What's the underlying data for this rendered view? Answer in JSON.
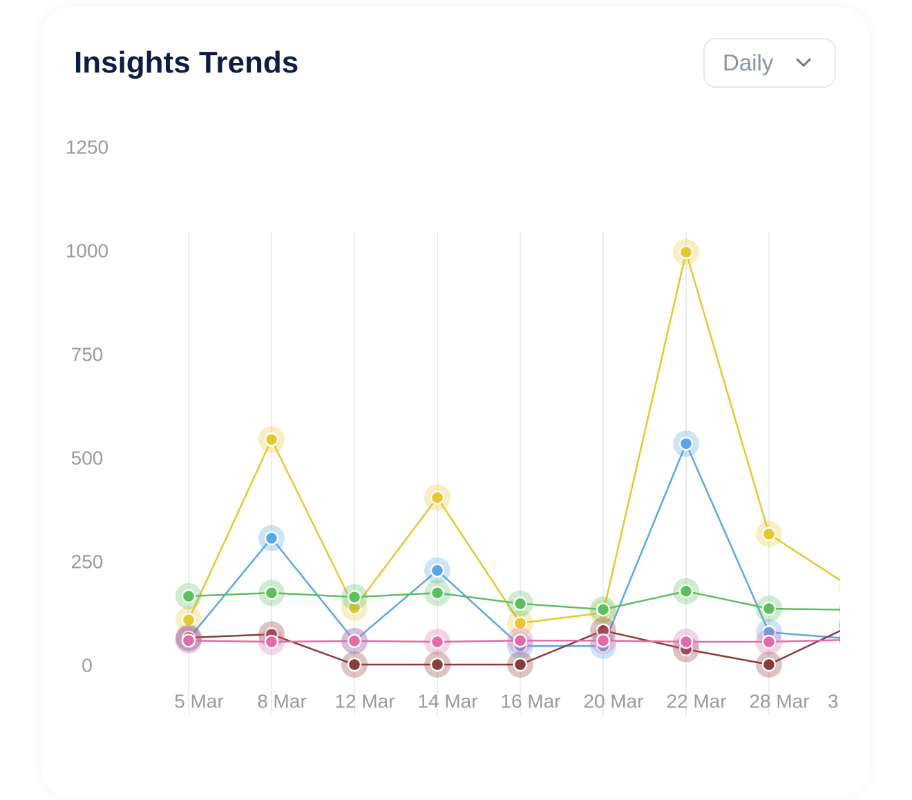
{
  "period_selector": "Daily",
  "chart_data": {
    "type": "line",
    "title": "Insights Trends",
    "categories": [
      "5 Mar",
      "8 Mar",
      "12 Mar",
      "14 Mar",
      "16 Mar",
      "20 Mar",
      "22 Mar",
      "28 Mar",
      "3"
    ],
    "series": [
      {
        "color": "#e8c62f",
        "values": [
          113,
          548,
          142,
          408,
          105,
          130,
          1000,
          320,
          190
        ]
      },
      {
        "color": "#5aa6e8",
        "values": [
          67,
          310,
          62,
          232,
          50,
          50,
          538,
          83,
          67
        ]
      },
      {
        "color": "#5cbf60",
        "values": [
          170,
          178,
          168,
          178,
          152,
          138,
          182,
          140,
          137
        ]
      },
      {
        "color": "#8b3a3a",
        "values": [
          70,
          78,
          5,
          5,
          5,
          87,
          42,
          5,
          100
        ]
      },
      {
        "color": "#e46aa8",
        "values": [
          63,
          60,
          62,
          60,
          63,
          63,
          60,
          60,
          65
        ]
      }
    ],
    "ylim": [
      0,
      1250
    ],
    "yticks": [
      0,
      250,
      500,
      750,
      1000,
      1250
    ],
    "x_grid": true
  }
}
